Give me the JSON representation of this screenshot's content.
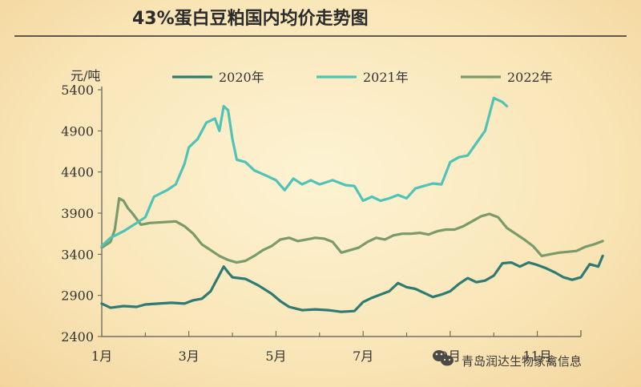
{
  "title": "43%蛋白豆粕国内均价走势图",
  "watermark": "青岛润达生物家禽信息",
  "chart_data": {
    "type": "line",
    "ylabel": "元/吨",
    "ylim": [
      2400,
      5400
    ],
    "yticks": [
      2400,
      2900,
      3400,
      3900,
      4400,
      4900,
      5400
    ],
    "xlim": [
      1,
      12
    ],
    "xticks": [
      {
        "value": 1,
        "label": "1月"
      },
      {
        "value": 3,
        "label": "3月"
      },
      {
        "value": 5,
        "label": "5月"
      },
      {
        "value": 7,
        "label": "7月"
      },
      {
        "value": 9,
        "label": "9月"
      },
      {
        "value": 11,
        "label": "11月"
      }
    ],
    "series": [
      {
        "name": "2020年",
        "color": "#2f7a72",
        "points": [
          [
            1.0,
            2800
          ],
          [
            1.2,
            2750
          ],
          [
            1.5,
            2770
          ],
          [
            1.8,
            2760
          ],
          [
            2.0,
            2790
          ],
          [
            2.3,
            2800
          ],
          [
            2.6,
            2810
          ],
          [
            2.9,
            2800
          ],
          [
            3.1,
            2840
          ],
          [
            3.3,
            2860
          ],
          [
            3.5,
            2950
          ],
          [
            3.6,
            3050
          ],
          [
            3.7,
            3150
          ],
          [
            3.8,
            3250
          ],
          [
            3.9,
            3180
          ],
          [
            4.0,
            3120
          ],
          [
            4.3,
            3100
          ],
          [
            4.6,
            3020
          ],
          [
            4.9,
            2920
          ],
          [
            5.1,
            2830
          ],
          [
            5.3,
            2760
          ],
          [
            5.6,
            2720
          ],
          [
            5.9,
            2730
          ],
          [
            6.2,
            2720
          ],
          [
            6.5,
            2700
          ],
          [
            6.8,
            2710
          ],
          [
            7.0,
            2820
          ],
          [
            7.2,
            2870
          ],
          [
            7.4,
            2910
          ],
          [
            7.6,
            2950
          ],
          [
            7.8,
            3050
          ],
          [
            8.0,
            3000
          ],
          [
            8.2,
            2980
          ],
          [
            8.4,
            2930
          ],
          [
            8.6,
            2880
          ],
          [
            8.8,
            2910
          ],
          [
            9.0,
            2950
          ],
          [
            9.2,
            3040
          ],
          [
            9.4,
            3110
          ],
          [
            9.6,
            3060
          ],
          [
            9.8,
            3080
          ],
          [
            10.0,
            3140
          ],
          [
            10.2,
            3290
          ],
          [
            10.4,
            3300
          ],
          [
            10.6,
            3250
          ],
          [
            10.8,
            3300
          ],
          [
            11.0,
            3270
          ],
          [
            11.2,
            3230
          ],
          [
            11.4,
            3180
          ],
          [
            11.6,
            3120
          ],
          [
            11.8,
            3090
          ],
          [
            12.0,
            3120
          ],
          [
            12.2,
            3280
          ],
          [
            12.4,
            3250
          ],
          [
            12.5,
            3380
          ]
        ]
      },
      {
        "name": "2021年",
        "color": "#4fc3b7",
        "points": [
          [
            1.0,
            3500
          ],
          [
            1.2,
            3600
          ],
          [
            1.5,
            3680
          ],
          [
            1.8,
            3780
          ],
          [
            2.0,
            3850
          ],
          [
            2.2,
            4100
          ],
          [
            2.5,
            4180
          ],
          [
            2.7,
            4250
          ],
          [
            2.9,
            4500
          ],
          [
            3.0,
            4700
          ],
          [
            3.2,
            4800
          ],
          [
            3.4,
            5000
          ],
          [
            3.6,
            5050
          ],
          [
            3.7,
            4900
          ],
          [
            3.8,
            5200
          ],
          [
            3.9,
            5150
          ],
          [
            4.0,
            4800
          ],
          [
            4.1,
            4550
          ],
          [
            4.3,
            4520
          ],
          [
            4.5,
            4420
          ],
          [
            4.8,
            4350
          ],
          [
            5.0,
            4300
          ],
          [
            5.2,
            4180
          ],
          [
            5.4,
            4320
          ],
          [
            5.6,
            4250
          ],
          [
            5.8,
            4300
          ],
          [
            6.0,
            4250
          ],
          [
            6.3,
            4300
          ],
          [
            6.6,
            4240
          ],
          [
            6.8,
            4230
          ],
          [
            7.0,
            4050
          ],
          [
            7.2,
            4100
          ],
          [
            7.4,
            4050
          ],
          [
            7.6,
            4080
          ],
          [
            7.8,
            4120
          ],
          [
            8.0,
            4080
          ],
          [
            8.2,
            4200
          ],
          [
            8.4,
            4230
          ],
          [
            8.6,
            4260
          ],
          [
            8.8,
            4250
          ],
          [
            9.0,
            4520
          ],
          [
            9.2,
            4580
          ],
          [
            9.4,
            4600
          ],
          [
            9.6,
            4750
          ],
          [
            9.8,
            4900
          ],
          [
            10.0,
            5300
          ],
          [
            10.2,
            5250
          ],
          [
            10.3,
            5200
          ]
        ]
      },
      {
        "name": "2022年",
        "color": "#7a9a6a",
        "points": [
          [
            1.0,
            3480
          ],
          [
            1.2,
            3550
          ],
          [
            1.3,
            3700
          ],
          [
            1.4,
            4080
          ],
          [
            1.5,
            4050
          ],
          [
            1.6,
            3960
          ],
          [
            1.7,
            3900
          ],
          [
            1.9,
            3760
          ],
          [
            2.1,
            3780
          ],
          [
            2.4,
            3790
          ],
          [
            2.7,
            3800
          ],
          [
            2.9,
            3740
          ],
          [
            3.1,
            3650
          ],
          [
            3.3,
            3520
          ],
          [
            3.5,
            3450
          ],
          [
            3.7,
            3380
          ],
          [
            3.9,
            3330
          ],
          [
            4.1,
            3300
          ],
          [
            4.3,
            3320
          ],
          [
            4.5,
            3380
          ],
          [
            4.7,
            3450
          ],
          [
            4.9,
            3500
          ],
          [
            5.1,
            3580
          ],
          [
            5.3,
            3600
          ],
          [
            5.5,
            3560
          ],
          [
            5.7,
            3580
          ],
          [
            5.9,
            3600
          ],
          [
            6.1,
            3590
          ],
          [
            6.3,
            3550
          ],
          [
            6.5,
            3420
          ],
          [
            6.7,
            3450
          ],
          [
            6.9,
            3480
          ],
          [
            7.1,
            3550
          ],
          [
            7.3,
            3600
          ],
          [
            7.5,
            3580
          ],
          [
            7.7,
            3630
          ],
          [
            7.9,
            3650
          ],
          [
            8.1,
            3650
          ],
          [
            8.3,
            3660
          ],
          [
            8.5,
            3640
          ],
          [
            8.7,
            3680
          ],
          [
            8.9,
            3700
          ],
          [
            9.1,
            3700
          ],
          [
            9.3,
            3740
          ],
          [
            9.5,
            3800
          ],
          [
            9.7,
            3860
          ],
          [
            9.9,
            3890
          ],
          [
            10.1,
            3850
          ],
          [
            10.3,
            3720
          ],
          [
            10.5,
            3650
          ],
          [
            10.7,
            3580
          ],
          [
            10.9,
            3500
          ],
          [
            11.1,
            3380
          ],
          [
            11.3,
            3400
          ],
          [
            11.5,
            3420
          ],
          [
            11.7,
            3430
          ],
          [
            11.9,
            3440
          ],
          [
            12.1,
            3490
          ],
          [
            12.3,
            3520
          ],
          [
            12.5,
            3560
          ]
        ]
      }
    ]
  }
}
